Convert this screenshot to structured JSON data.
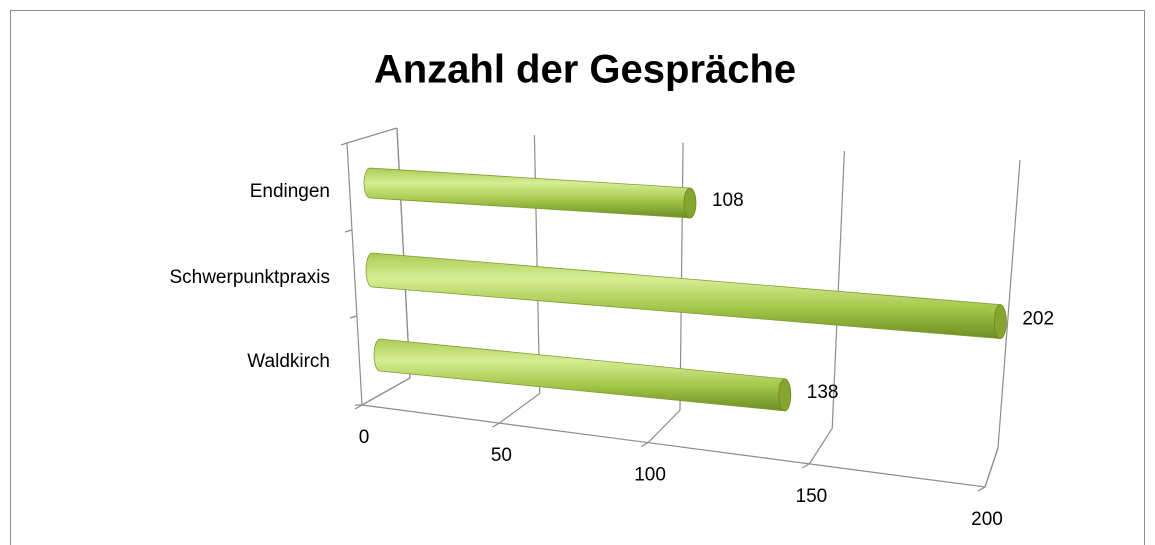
{
  "chart_data": {
    "type": "bar3d",
    "title": "Anzahl der Gespräche",
    "categories": [
      "Endingen",
      "Schwerpunktpraxis",
      "Waldkirch"
    ],
    "values": [
      108,
      202,
      138
    ],
    "color": "#9bbb59",
    "xlim": [
      0,
      200
    ],
    "xticks": [
      0,
      50,
      100,
      150,
      200
    ],
    "grid": true
  }
}
